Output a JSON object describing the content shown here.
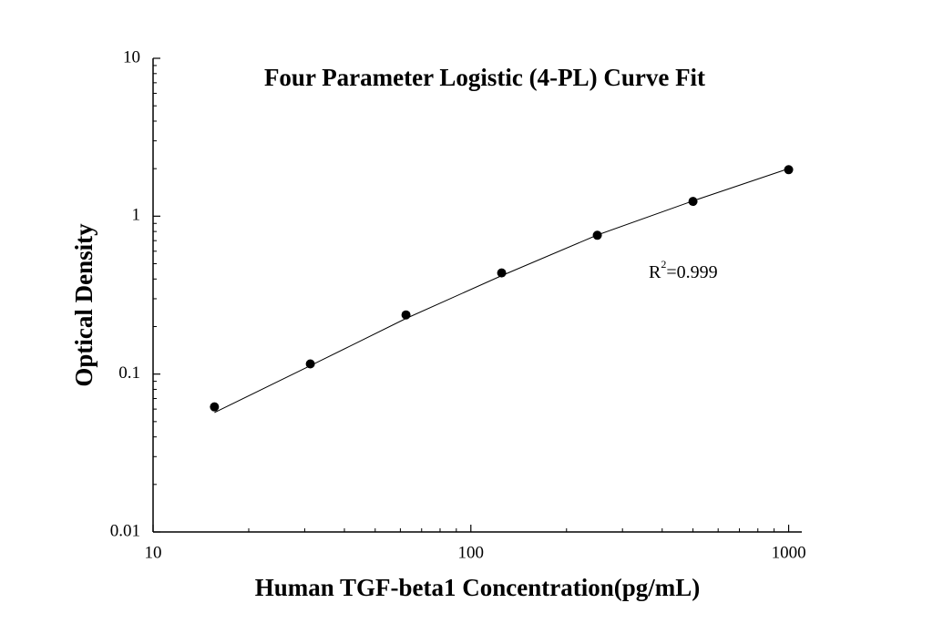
{
  "chart_data": {
    "type": "scatter",
    "title": "Four Parameter Logistic (4-PL) Curve Fit",
    "xlabel": "Human TGF-beta1 Concentration(pg/mL)",
    "ylabel": "Optical Density",
    "annotation": [
      "R",
      "2",
      "=0.999"
    ],
    "xlog": true,
    "ylog": true,
    "xlim": [
      10,
      1100
    ],
    "ylim": [
      0.01,
      10
    ],
    "xticks": [
      10,
      100,
      1000
    ],
    "yticks": [
      0.01,
      0.1,
      1,
      10
    ],
    "xminorticks": [
      20,
      30,
      40,
      50,
      60,
      70,
      80,
      90,
      200,
      300,
      400,
      500,
      600,
      700,
      800,
      900
    ],
    "yminorticks": [
      0.02,
      0.03,
      0.04,
      0.05,
      0.06,
      0.07,
      0.08,
      0.09,
      0.2,
      0.3,
      0.4,
      0.5,
      0.6,
      0.7,
      0.8,
      0.9,
      2,
      3,
      4,
      5,
      6,
      7,
      8,
      9
    ],
    "series": [
      {
        "type": "scatter",
        "color": "#000000",
        "x": [
          15.6,
          31.25,
          62.5,
          125,
          250,
          500,
          1000
        ],
        "values": [
          0.062,
          0.116,
          0.237,
          0.437,
          0.757,
          1.24,
          1.97
        ]
      },
      {
        "type": "line",
        "color": "#000000",
        "x": [
          15.6,
          31.25,
          62.5,
          125,
          250,
          500,
          1000
        ],
        "values": [
          0.057,
          0.113,
          0.225,
          0.42,
          0.76,
          1.25,
          2.0
        ]
      }
    ]
  }
}
